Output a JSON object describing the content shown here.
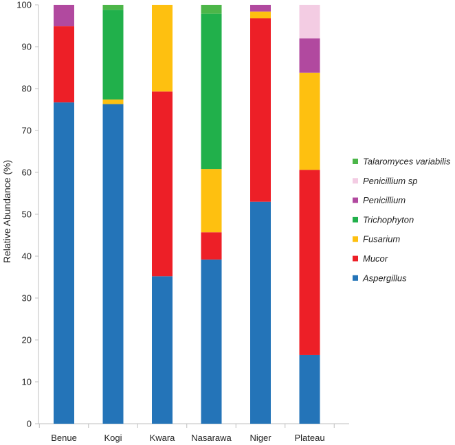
{
  "chart_data": {
    "type": "bar",
    "stacked": true,
    "categories": [
      "Benue",
      "Kogi",
      "Kwara",
      "Nasarawa",
      "Niger",
      "Plateau"
    ],
    "ylabel": "Relative Abundance (%)",
    "xlabel": "",
    "ylim": [
      0,
      100
    ],
    "yticks": [
      0,
      10,
      20,
      30,
      40,
      50,
      60,
      70,
      80,
      90,
      100
    ],
    "grid": false,
    "legend_position": "right",
    "series": [
      {
        "name": "Aspergillus",
        "color": "#2474b8",
        "values": [
          76.7,
          76.3,
          35.2,
          39.2,
          53.0,
          16.4
        ]
      },
      {
        "name": "Mucor",
        "color": "#ed1f27",
        "values": [
          18.2,
          0.0,
          44.1,
          6.5,
          43.8,
          44.2
        ]
      },
      {
        "name": "Fusarium",
        "color": "#fec010",
        "values": [
          0.0,
          1.1,
          20.7,
          15.1,
          1.6,
          23.2
        ]
      },
      {
        "name": "Trichophyton",
        "color": "#21b04b",
        "values": [
          0.0,
          21.4,
          0.0,
          37.1,
          0.0,
          0.0
        ]
      },
      {
        "name": "Penicillium",
        "color": "#b1499f",
        "values": [
          5.1,
          0.0,
          0.0,
          0.0,
          1.6,
          8.2
        ]
      },
      {
        "name": "Penicillium sp",
        "color": "#f3cce3",
        "values": [
          0.0,
          0.0,
          0.0,
          0.0,
          0.0,
          8.0
        ]
      },
      {
        "name": "Talaromyces variabilis",
        "color": "#4cb649",
        "values": [
          0.0,
          1.2,
          0.0,
          2.1,
          0.0,
          0.0
        ]
      }
    ]
  }
}
